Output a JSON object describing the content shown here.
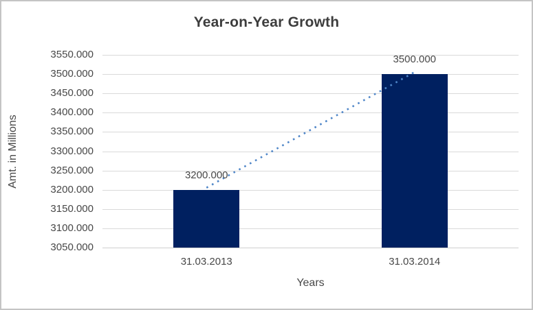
{
  "window": {
    "background": "#FFFFFF"
  },
  "colors": {
    "border": "#C4C4C4",
    "title_text": "#3D3D3D",
    "text": "#474747",
    "gridline": "#D9D9D9",
    "axis_line": "#CFCFCF",
    "bar": "#002060",
    "trendline": "#4F86C8"
  },
  "chart_data": {
    "type": "bar",
    "title": "Year-on-Year Growth",
    "categories": [
      "31.03.2013",
      "31.03.2014"
    ],
    "values": [
      3200,
      3500
    ],
    "data_labels": [
      "3200.000",
      "3500.000"
    ],
    "xlabel": "Years",
    "ylabel": "Amt. in Millions",
    "ylim": [
      3050,
      3550
    ],
    "ytick_step": 50,
    "ytick_labels": [
      "3550.000",
      "3500.000",
      "3450.000",
      "3400.000",
      "3350.000",
      "3300.000",
      "3250.000",
      "3200.000",
      "3150.000",
      "3100.000",
      "3050.000"
    ],
    "grid": true,
    "legend": "none",
    "trendline": {
      "type": "linear",
      "style": "dotted",
      "connects": [
        3200,
        3500
      ]
    }
  }
}
